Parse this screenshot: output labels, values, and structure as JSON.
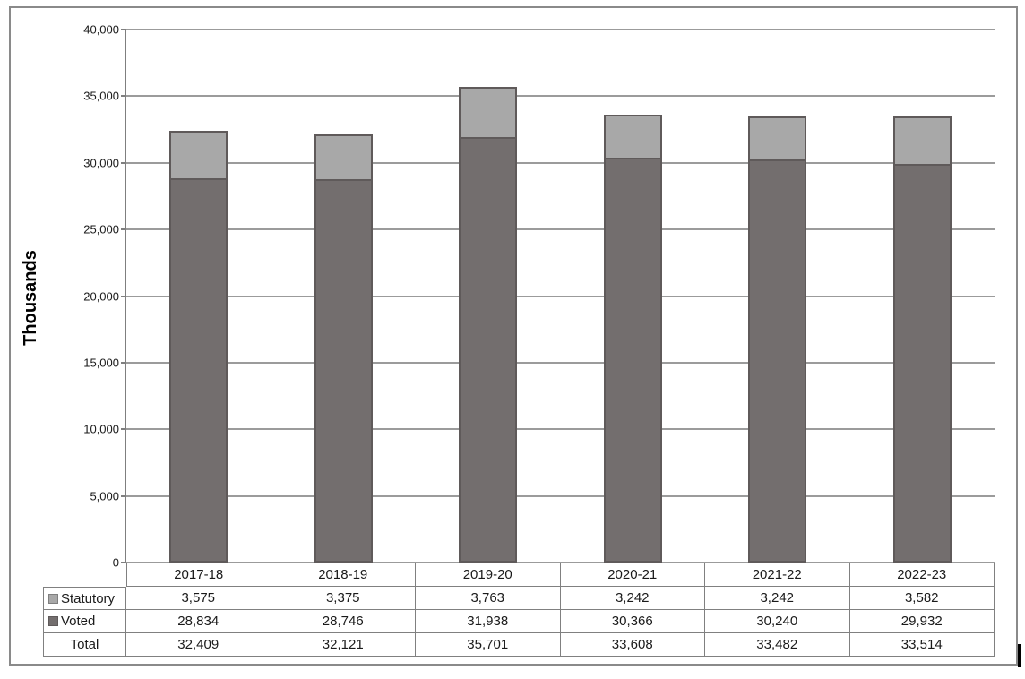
{
  "chart_data": {
    "type": "bar",
    "stacked": true,
    "title": "",
    "categories": [
      "2017-18",
      "2018-19",
      "2019-20",
      "2020-21",
      "2021-22",
      "2022-23"
    ],
    "series": [
      {
        "name": "Voted",
        "color": "#736e6e",
        "values": [
          28834,
          28746,
          31938,
          30366,
          30240,
          29932
        ]
      },
      {
        "name": "Statutory",
        "color": "#a8a8a8",
        "values": [
          3575,
          3375,
          3763,
          3242,
          3242,
          3582
        ]
      }
    ],
    "totals": [
      32409,
      32121,
      35701,
      33608,
      33482,
      33514
    ],
    "xlabel": "",
    "ylabel": "Thousands",
    "ylim": [
      0,
      40000
    ],
    "ytick_step": 5000,
    "ytick_labels": [
      "0",
      "5,000",
      "10,000",
      "15,000",
      "20,000",
      "25,000",
      "30,000",
      "35,000",
      "40,000"
    ],
    "grid": true,
    "legend_position": "data-table-left"
  },
  "data_table": {
    "header_row": [
      "2017-18",
      "2018-19",
      "2019-20",
      "2020-21",
      "2021-22",
      "2022-23"
    ],
    "rows": [
      {
        "label": "Statutory",
        "marker": true,
        "marker_color": "#a8a8a8",
        "marker_border": "#7f7f7f",
        "values": [
          "3,575",
          "3,375",
          "3,763",
          "3,242",
          "3,242",
          "3,582"
        ]
      },
      {
        "label": "Voted",
        "marker": true,
        "marker_color": "#736e6e",
        "marker_border": "#5f5a5a",
        "values": [
          "28,834",
          "28,746",
          "31,938",
          "30,366",
          "30,240",
          "29,932"
        ]
      },
      {
        "label": "Total",
        "marker": false,
        "marker_color": "",
        "marker_border": "",
        "values": [
          "32,409",
          "32,121",
          "35,701",
          "33,608",
          "33,482",
          "33,514"
        ]
      }
    ]
  },
  "colors": {
    "gridline": "#9b9b9b",
    "axis": "#7f7f7f",
    "bar_border": "#5f5a5a",
    "table_border": "#808080",
    "frame_border": "#8a8a8a",
    "text": "#1a1a1a"
  }
}
